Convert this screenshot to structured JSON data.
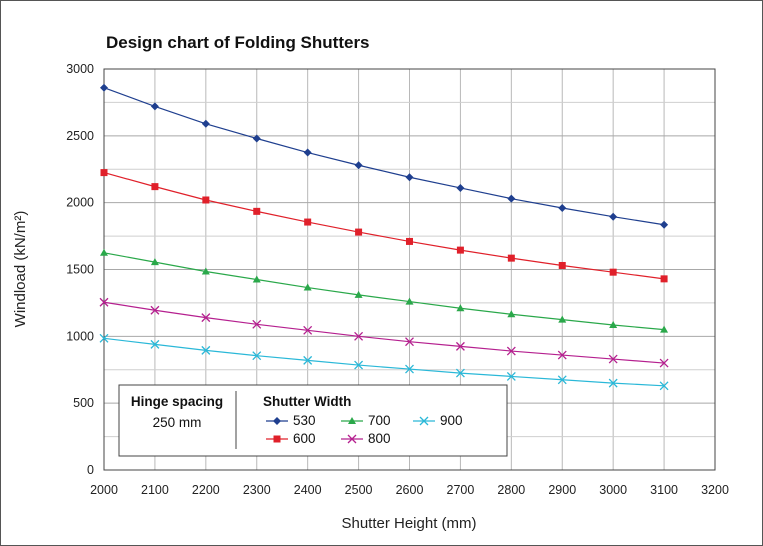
{
  "chart_data": {
    "type": "line",
    "title": "Design chart of Folding Shutters",
    "xlabel": "Shutter Height (mm)",
    "ylabel": "Windload (kN/m²)",
    "xlim": [
      2000,
      3200
    ],
    "ylim": [
      0,
      3000
    ],
    "xticks": [
      2000,
      2100,
      2200,
      2300,
      2400,
      2500,
      2600,
      2700,
      2800,
      2900,
      3000,
      3100,
      3200
    ],
    "yticks": [
      0,
      500,
      1000,
      1500,
      2000,
      2500,
      3000
    ],
    "grid": true,
    "x": [
      2000,
      2100,
      2200,
      2300,
      2400,
      2500,
      2600,
      2700,
      2800,
      2900,
      3000,
      3100
    ],
    "series": [
      {
        "name": "530",
        "color": "#1f3f8f",
        "marker": "diamond",
        "values": [
          2860,
          2720,
          2590,
          2480,
          2375,
          2280,
          2190,
          2110,
          2030,
          1960,
          1895,
          1835
        ]
      },
      {
        "name": "600",
        "color": "#e0202a",
        "marker": "square",
        "values": [
          2225,
          2120,
          2020,
          1935,
          1855,
          1780,
          1710,
          1645,
          1585,
          1530,
          1480,
          1430
        ]
      },
      {
        "name": "700",
        "color": "#2aa84a",
        "marker": "triangle",
        "values": [
          1625,
          1555,
          1485,
          1425,
          1365,
          1310,
          1260,
          1210,
          1165,
          1125,
          1085,
          1050
        ]
      },
      {
        "name": "800",
        "color": "#b5208f",
        "marker": "x",
        "values": [
          1255,
          1195,
          1140,
          1090,
          1045,
          1000,
          960,
          925,
          890,
          860,
          830,
          800
        ]
      },
      {
        "name": "900",
        "color": "#2ab8d8",
        "marker": "x",
        "values": [
          985,
          940,
          895,
          855,
          820,
          785,
          755,
          725,
          700,
          675,
          650,
          630
        ]
      }
    ],
    "legend": {
      "placement": "bottom-left",
      "hinge_title": "Hinge spacing",
      "hinge_value": "250 mm",
      "width_title": "Shutter Width"
    }
  }
}
